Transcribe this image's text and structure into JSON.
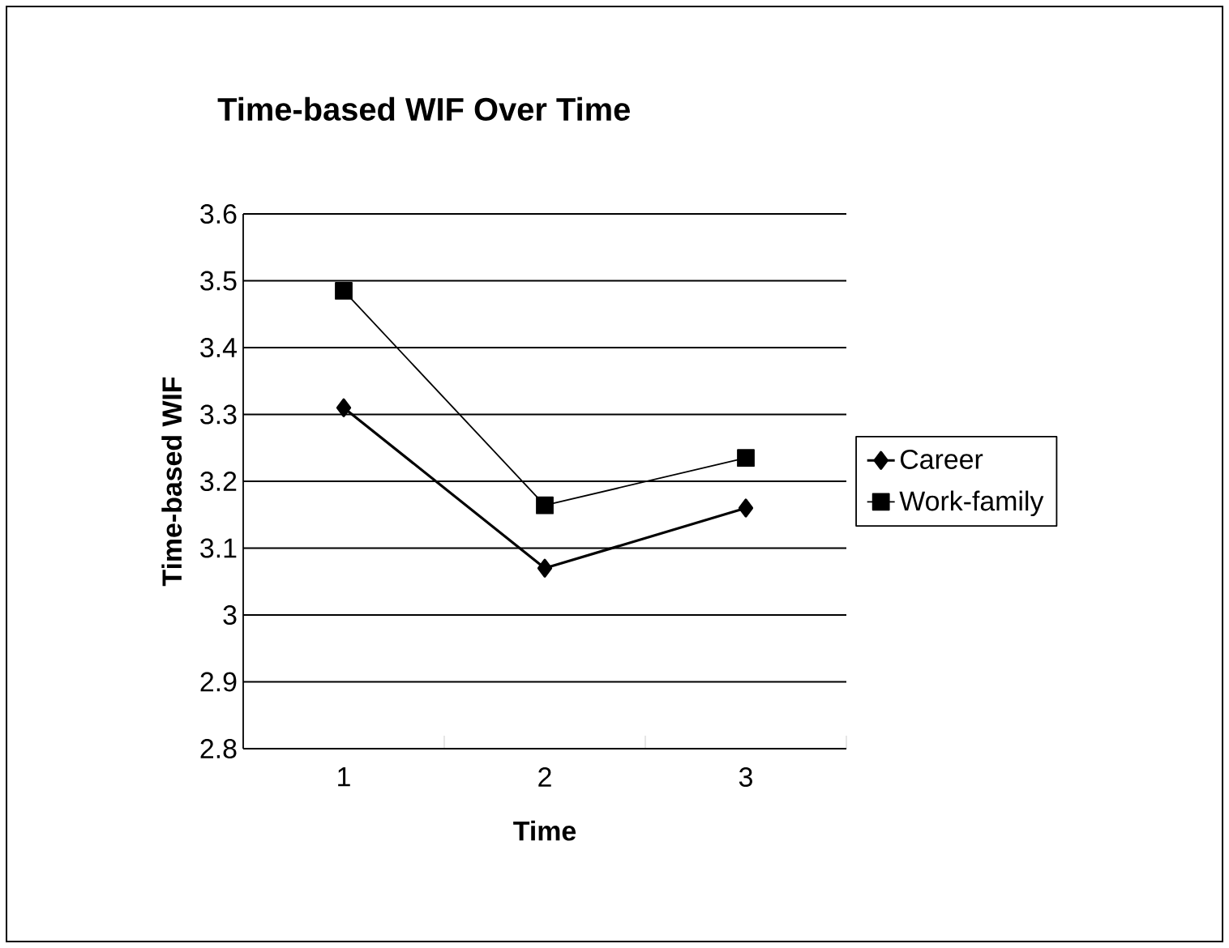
{
  "chart_data": {
    "type": "line",
    "title": "Time-based WIF Over Time",
    "xlabel": "Time",
    "ylabel": "Time-based WIF",
    "categories": [
      "1",
      "2",
      "3"
    ],
    "series": [
      {
        "name": "Career",
        "color": "#000000",
        "marker": "diamond",
        "values": [
          3.31,
          3.07,
          3.16
        ]
      },
      {
        "name": "Work-family",
        "color": "#000000",
        "marker": "square",
        "values": [
          3.485,
          3.164,
          3.235
        ]
      }
    ],
    "ylim": [
      2.8,
      3.6
    ],
    "yticks": [
      2.8,
      2.9,
      3,
      3.1,
      3.2,
      3.3,
      3.4,
      3.5,
      3.6
    ],
    "grid": "y",
    "legend": "right"
  }
}
